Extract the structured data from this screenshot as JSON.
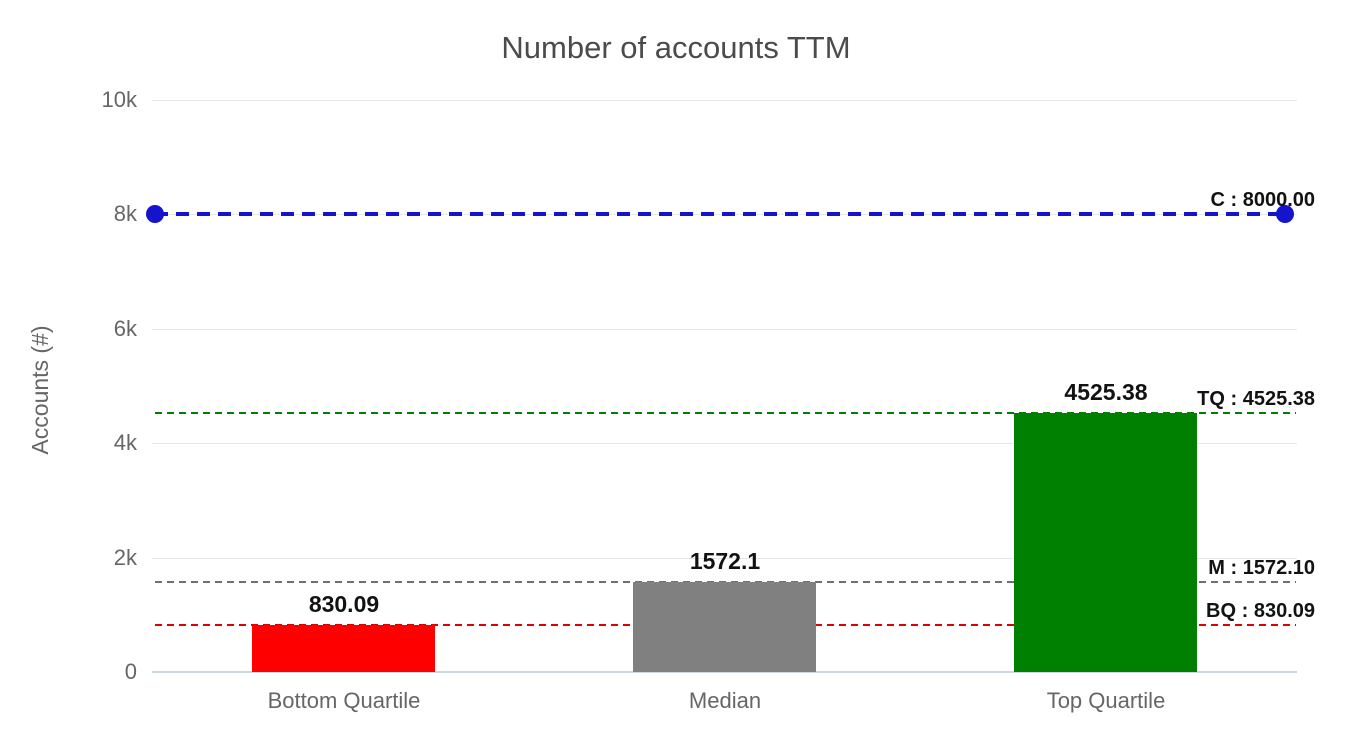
{
  "chart_data": {
    "type": "bar",
    "title": "Number of accounts TTM",
    "ylabel": "Accounts (#)",
    "xlabel": "",
    "ylim": [
      0,
      10000
    ],
    "grid": true,
    "legend": false,
    "yticks": [
      {
        "value": 10000,
        "label": "10k"
      },
      {
        "value": 8000,
        "label": "8k"
      },
      {
        "value": 6000,
        "label": "6k"
      },
      {
        "value": 4000,
        "label": "4k"
      },
      {
        "value": 2000,
        "label": "2k"
      },
      {
        "value": 0,
        "label": "0"
      }
    ],
    "categories": [
      "Bottom Quartile",
      "Median",
      "Top Quartile"
    ],
    "series": [
      {
        "name": "Accounts",
        "values": [
          830.09,
          1572.1,
          4525.38
        ]
      }
    ],
    "bar_value_labels": [
      "830.09",
      "1572.1",
      "4525.38"
    ],
    "bar_colors": [
      "#fe0000",
      "#808080",
      "#008000"
    ],
    "reference_lines": [
      {
        "id": "C",
        "value": 8000,
        "label": "C : 8000.00",
        "color": "#1414cd",
        "emphasis": true
      },
      {
        "id": "TQ",
        "value": 4525.38,
        "label": "TQ : 4525.38",
        "color": "#008000",
        "emphasis": false
      },
      {
        "id": "M",
        "value": 1572.1,
        "label": "M : 1572.10",
        "color": "#707070",
        "emphasis": false
      },
      {
        "id": "BQ",
        "value": 830.09,
        "label": "BQ : 830.09",
        "color": "#e00000",
        "emphasis": false
      }
    ]
  }
}
